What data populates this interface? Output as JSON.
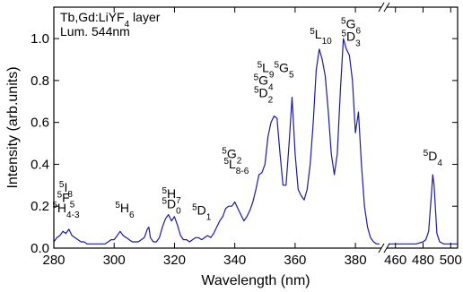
{
  "chart_data": {
    "type": "line",
    "xlabel": "Wavelength (nm)",
    "ylabel": "Intensity (arb.units)",
    "ylim": [
      0,
      1.15
    ],
    "grid": false,
    "legend": {
      "lines": [
        {
          "parts": [
            {
              "t": "Tb,Gd:LiYF"
            },
            {
              "t": "4",
              "sub": true
            },
            {
              "t": " layer"
            }
          ]
        },
        {
          "parts": [
            {
              "t": "Lum. 544nm"
            }
          ]
        }
      ],
      "placement": "top-left"
    },
    "x_segments": [
      {
        "xlim": [
          280,
          388
        ],
        "ticks": [
          280,
          300,
          320,
          340,
          360,
          380
        ]
      },
      {
        "xlim": [
          455,
          505
        ],
        "ticks": [
          460,
          480,
          500
        ]
      }
    ],
    "y_ticks": [
      "0.0",
      "0.2",
      "0.4",
      "0.6",
      "0.8",
      "1.0"
    ],
    "series": [
      {
        "color": "#1a1aa6",
        "points": [
          [
            280,
            0.03
          ],
          [
            281,
            0.05
          ],
          [
            282,
            0.06
          ],
          [
            283,
            0.08
          ],
          [
            284,
            0.07
          ],
          [
            285,
            0.09
          ],
          [
            286,
            0.06
          ],
          [
            287,
            0.05
          ],
          [
            288,
            0.04
          ],
          [
            289,
            0.03
          ],
          [
            290,
            0.03
          ],
          [
            291,
            0.02
          ],
          [
            292,
            0.02
          ],
          [
            293,
            0.02
          ],
          [
            294,
            0.02
          ],
          [
            295,
            0.02
          ],
          [
            296,
            0.02
          ],
          [
            297,
            0.02
          ],
          [
            298,
            0.03
          ],
          [
            299,
            0.04
          ],
          [
            300,
            0.04
          ],
          [
            301,
            0.06
          ],
          [
            302,
            0.08
          ],
          [
            303,
            0.06
          ],
          [
            304,
            0.05
          ],
          [
            305,
            0.04
          ],
          [
            306,
            0.03
          ],
          [
            307,
            0.03
          ],
          [
            308,
            0.03
          ],
          [
            309,
            0.04
          ],
          [
            310,
            0.05
          ],
          [
            311,
            0.09
          ],
          [
            311.5,
            0.1
          ],
          [
            312,
            0.05
          ],
          [
            313,
            0.03
          ],
          [
            314,
            0.03
          ],
          [
            315,
            0.05
          ],
          [
            316,
            0.1
          ],
          [
            317,
            0.14
          ],
          [
            318,
            0.16
          ],
          [
            319,
            0.13
          ],
          [
            320,
            0.15
          ],
          [
            321,
            0.11
          ],
          [
            322,
            0.06
          ],
          [
            323,
            0.04
          ],
          [
            324,
            0.04
          ],
          [
            325,
            0.03
          ],
          [
            326,
            0.04
          ],
          [
            327,
            0.05
          ],
          [
            328,
            0.05
          ],
          [
            329,
            0.04
          ],
          [
            330,
            0.05
          ],
          [
            331,
            0.06
          ],
          [
            332,
            0.05
          ],
          [
            333,
            0.07
          ],
          [
            334,
            0.1
          ],
          [
            335,
            0.13
          ],
          [
            336,
            0.15
          ],
          [
            337,
            0.19
          ],
          [
            338,
            0.2
          ],
          [
            339,
            0.2
          ],
          [
            340,
            0.22
          ],
          [
            341,
            0.19
          ],
          [
            342,
            0.16
          ],
          [
            343,
            0.13
          ],
          [
            344,
            0.15
          ],
          [
            345,
            0.18
          ],
          [
            346,
            0.22
          ],
          [
            347,
            0.28
          ],
          [
            348,
            0.35
          ],
          [
            349,
            0.36
          ],
          [
            350,
            0.4
          ],
          [
            351,
            0.53
          ],
          [
            352,
            0.6
          ],
          [
            353,
            0.63
          ],
          [
            354,
            0.62
          ],
          [
            355,
            0.45
          ],
          [
            356,
            0.3
          ],
          [
            357,
            0.3
          ],
          [
            358,
            0.5
          ],
          [
            359,
            0.72
          ],
          [
            360,
            0.45
          ],
          [
            361,
            0.28
          ],
          [
            362,
            0.25
          ],
          [
            363,
            0.23
          ],
          [
            364,
            0.28
          ],
          [
            365,
            0.4
          ],
          [
            366,
            0.6
          ],
          [
            367,
            0.85
          ],
          [
            368,
            0.95
          ],
          [
            369,
            0.9
          ],
          [
            370,
            0.82
          ],
          [
            371,
            0.65
          ],
          [
            372,
            0.45
          ],
          [
            373,
            0.35
          ],
          [
            374,
            0.45
          ],
          [
            375,
            0.75
          ],
          [
            376,
            1.0
          ],
          [
            377,
            0.95
          ],
          [
            378,
            0.92
          ],
          [
            379,
            0.8
          ],
          [
            380,
            0.55
          ],
          [
            381,
            0.65
          ],
          [
            382,
            0.4
          ],
          [
            383,
            0.2
          ],
          [
            384,
            0.1
          ],
          [
            385,
            0.05
          ],
          [
            386,
            0.03
          ],
          [
            387,
            0.02
          ],
          [
            388,
            0.02
          ],
          [
            455,
            0.02
          ],
          [
            460,
            0.02
          ],
          [
            465,
            0.02
          ],
          [
            470,
            0.02
          ],
          [
            475,
            0.02
          ],
          [
            480,
            0.03
          ],
          [
            482,
            0.04
          ],
          [
            484,
            0.08
          ],
          [
            486,
            0.25
          ],
          [
            487,
            0.35
          ],
          [
            488,
            0.3
          ],
          [
            489,
            0.18
          ],
          [
            490,
            0.07
          ],
          [
            492,
            0.03
          ],
          [
            495,
            0.02
          ],
          [
            500,
            0.02
          ],
          [
            505,
            0.02
          ]
        ]
      }
    ],
    "annotations": [
      {
        "id": "a1",
        "x": 284,
        "y": 0.27,
        "parts": [
          {
            "t": "5",
            "sup": true
          },
          {
            "t": "I"
          },
          {
            "t": "8",
            "sub": true
          }
        ]
      },
      {
        "id": "a2",
        "x": 284,
        "y": 0.22,
        "parts": [
          {
            "t": "5",
            "sup": true
          },
          {
            "t": "F"
          },
          {
            "t": "5",
            "sub": true
          }
        ]
      },
      {
        "id": "a3",
        "x": 284,
        "y": 0.17,
        "parts": [
          {
            "t": "5",
            "sup": true
          },
          {
            "t": "H"
          },
          {
            "t": "4-3",
            "sub": true
          }
        ]
      },
      {
        "id": "a4",
        "x": 303.5,
        "y": 0.17,
        "parts": [
          {
            "t": "5",
            "sup": true
          },
          {
            "t": "H"
          },
          {
            "t": "6",
            "sub": true
          }
        ]
      },
      {
        "id": "a5",
        "x": 319,
        "y": 0.24,
        "parts": [
          {
            "t": "5",
            "sup": true
          },
          {
            "t": "H"
          },
          {
            "t": "7",
            "sub": true
          }
        ]
      },
      {
        "id": "a6",
        "x": 319,
        "y": 0.19,
        "parts": [
          {
            "t": "5",
            "sup": true
          },
          {
            "t": "D"
          },
          {
            "t": "0",
            "sub": true
          }
        ]
      },
      {
        "id": "a7",
        "x": 329,
        "y": 0.16,
        "parts": [
          {
            "t": "5",
            "sup": true
          },
          {
            "t": "D"
          },
          {
            "t": "1",
            "sub": true
          }
        ]
      },
      {
        "id": "a8",
        "x": 339,
        "y": 0.43,
        "parts": [
          {
            "t": "5",
            "sup": true
          },
          {
            "t": "G"
          },
          {
            "t": "2",
            "sub": true
          }
        ]
      },
      {
        "id": "a9",
        "x": 340.5,
        "y": 0.38,
        "parts": [
          {
            "t": "5",
            "sup": true
          },
          {
            "t": "L"
          },
          {
            "t": "8-6",
            "sub": true
          }
        ]
      },
      {
        "id": "a10",
        "x": 353.5,
        "y": 0.84,
        "parts": [
          {
            "t": "5",
            "sup": true
          },
          {
            "t": "L"
          },
          {
            "t": "9",
            "sub": true
          },
          {
            "t": "5",
            "sup": true
          },
          {
            "t": "G"
          },
          {
            "t": "5",
            "sub": true
          }
        ]
      },
      {
        "id": "a11",
        "x": 349.5,
        "y": 0.78,
        "parts": [
          {
            "t": "5",
            "sup": true
          },
          {
            "t": "G"
          },
          {
            "t": "4",
            "sub": true
          }
        ]
      },
      {
        "id": "a12",
        "x": 349.5,
        "y": 0.72,
        "parts": [
          {
            "t": "5",
            "sup": true
          },
          {
            "t": "D"
          },
          {
            "t": "2",
            "sub": true
          }
        ]
      },
      {
        "id": "a13",
        "x": 368.5,
        "y": 1.0,
        "parts": [
          {
            "t": "5",
            "sup": true
          },
          {
            "t": "L"
          },
          {
            "t": "10",
            "sub": true
          }
        ]
      },
      {
        "id": "a14",
        "x": 378.5,
        "y": 1.05,
        "parts": [
          {
            "t": "5",
            "sup": true
          },
          {
            "t": "G"
          },
          {
            "t": "6",
            "sub": true
          }
        ]
      },
      {
        "id": "a15",
        "x": 378.5,
        "y": 0.99,
        "parts": [
          {
            "t": "5",
            "sup": true
          },
          {
            "t": "D"
          },
          {
            "t": "3",
            "sub": true
          }
        ]
      },
      {
        "id": "a16",
        "x": 487,
        "y": 0.42,
        "parts": [
          {
            "t": "5",
            "sup": true
          },
          {
            "t": "D"
          },
          {
            "t": "4",
            "sub": true
          }
        ]
      }
    ]
  }
}
